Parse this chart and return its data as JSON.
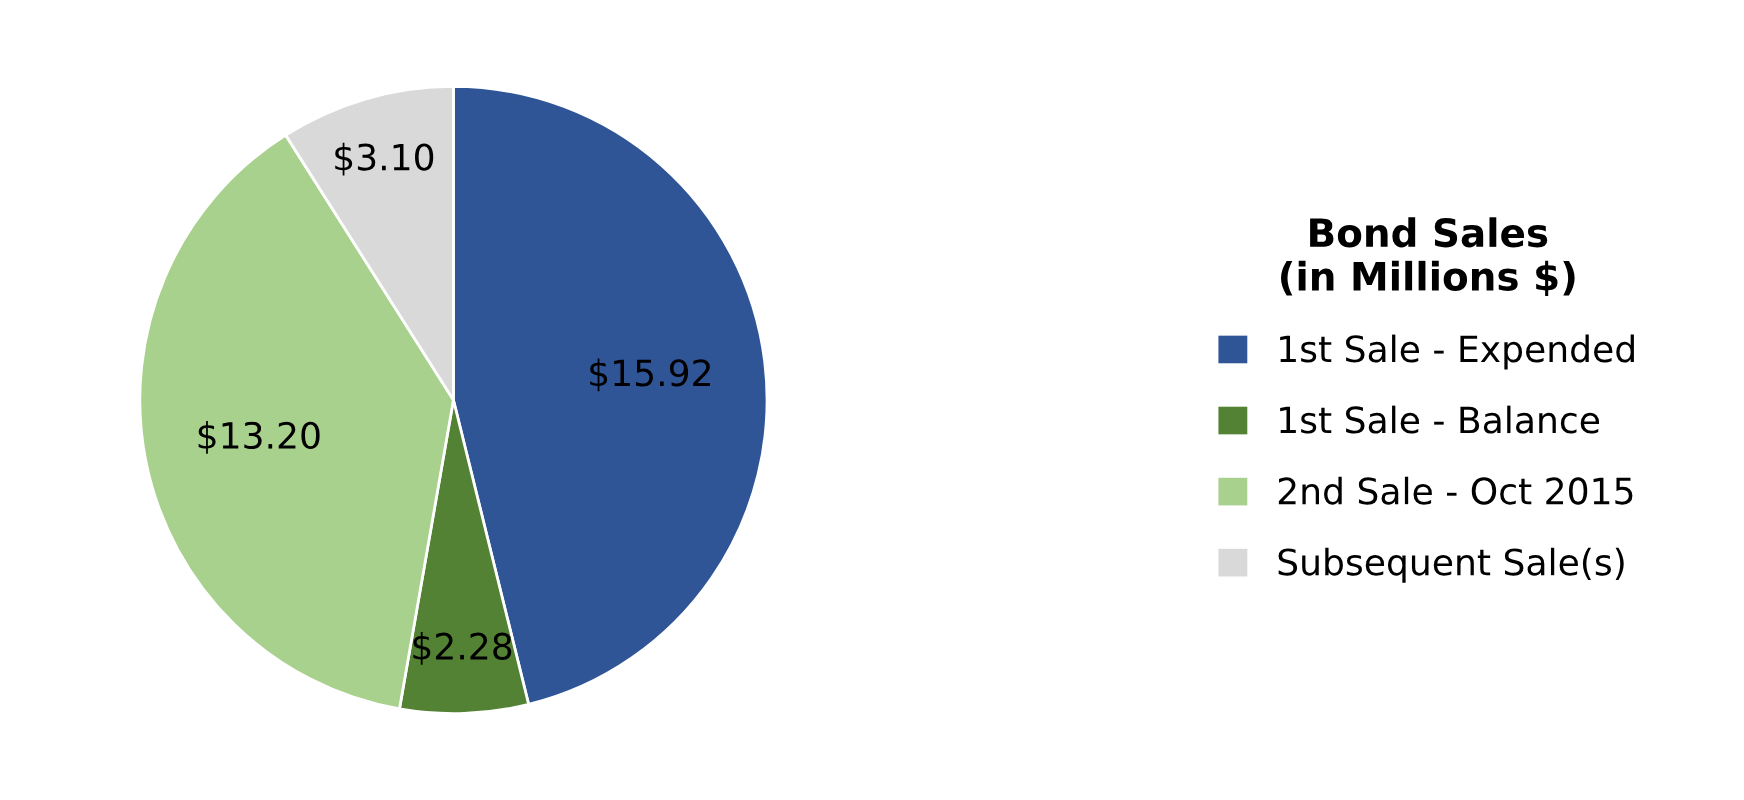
{
  "chart_data": {
    "type": "pie",
    "legend_title": "Bond Sales\n(in Millions $)",
    "categories": [
      "1st Sale - Expended",
      "1st Sale - Balance",
      "2nd Sale - Oct 2015",
      "Subsequent Sale(s)"
    ],
    "values": [
      15.92,
      2.28,
      13.2,
      3.1
    ],
    "value_labels": [
      "$15.92",
      "$2.28",
      "$13.20",
      "$3.10"
    ],
    "colors": [
      "#2f5597",
      "#548235",
      "#a9d18e",
      "#d9d9d9"
    ],
    "legend": "right"
  }
}
